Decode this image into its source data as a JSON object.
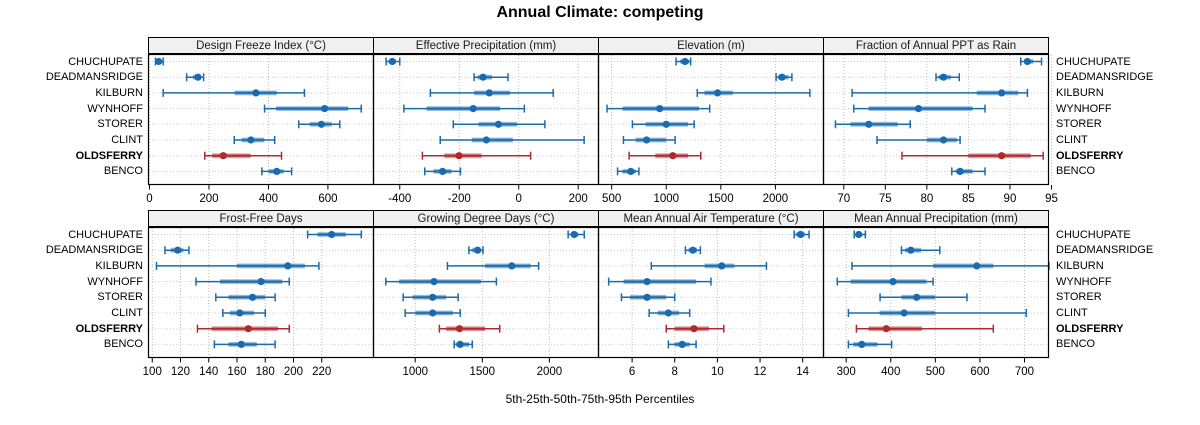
{
  "title": "Annual Climate: competing",
  "caption": "5th-25th-50th-75th-95th Percentiles",
  "percentile_labels": [
    "5th",
    "25th",
    "50th",
    "75th",
    "95th"
  ],
  "stations": [
    "CHUCHUPATE",
    "DEADMANSRIDGE",
    "KILBURN",
    "WYNHOFF",
    "STORER",
    "CLINT",
    "OLDSFERRY",
    "BENCO"
  ],
  "highlight_station": "OLDSFERRY",
  "colors": {
    "series_blue": "#1a6aad",
    "series_red": "#b3282d",
    "strip_bg": "#f0f0f0",
    "grid": "#bdbdbd",
    "border": "#000000"
  },
  "chart_data": [
    {
      "type": "dotplot-intervals",
      "title": "Design Freeze Index (°C)",
      "row": 0,
      "col": 0,
      "xlim": [
        -5,
        755
      ],
      "ticks": [
        0,
        200,
        400,
        600
      ],
      "percentiles": [
        "5th",
        "25th",
        "50th",
        "75th",
        "95th"
      ],
      "series": {
        "CHUCHUPATE": [
          20,
          26,
          31,
          38,
          46
        ],
        "DEADMANSRIDGE": [
          125,
          146,
          163,
          173,
          182
        ],
        "KILBURN": [
          46,
          286,
          358,
          428,
          521
        ],
        "WYNHOFF": [
          387,
          426,
          589,
          668,
          712
        ],
        "STORER": [
          502,
          539,
          578,
          613,
          640
        ],
        "CLINT": [
          285,
          310,
          341,
          386,
          421
        ],
        "OLDSFERRY": [
          186,
          211,
          248,
          340,
          444
        ],
        "BENCO": [
          378,
          401,
          428,
          451,
          478
        ]
      }
    },
    {
      "type": "dotplot-intervals",
      "title": "Effective Precipitation (mm)",
      "row": 0,
      "col": 1,
      "xlim": [
        -490,
        270
      ],
      "ticks": [
        -400,
        -200,
        0,
        200
      ],
      "percentiles": [
        "5th",
        "25th",
        "50th",
        "75th",
        "95th"
      ],
      "series": {
        "CHUCHUPATE": [
          -446,
          -437,
          -425,
          -413,
          -400
        ],
        "DEADMANSRIDGE": [
          -150,
          -138,
          -120,
          -90,
          -36
        ],
        "KILBURN": [
          -297,
          -150,
          -99,
          -30,
          116
        ],
        "WYNHOFF": [
          -386,
          -310,
          -153,
          -63,
          19
        ],
        "STORER": [
          -220,
          -135,
          -68,
          -5,
          88
        ],
        "CLINT": [
          -264,
          -158,
          -109,
          -20,
          220
        ],
        "OLDSFERRY": [
          -324,
          -250,
          -201,
          -125,
          40
        ],
        "BENCO": [
          -316,
          -286,
          -256,
          -226,
          -196
        ]
      }
    },
    {
      "type": "dotplot-intervals",
      "title": "Elevation (m)",
      "row": 0,
      "col": 2,
      "xlim": [
        375,
        2445
      ],
      "ticks": [
        500,
        1000,
        1500,
        2000
      ],
      "percentiles": [
        "5th",
        "25th",
        "50th",
        "75th",
        "95th"
      ],
      "series": {
        "CHUCHUPATE": [
          1090,
          1128,
          1172,
          1210,
          1224
        ],
        "DEADMANSRIDGE": [
          2006,
          2025,
          2060,
          2119,
          2151
        ],
        "KILBURN": [
          1284,
          1350,
          1470,
          1610,
          2316
        ],
        "WYNHOFF": [
          458,
          600,
          940,
          1300,
          1398
        ],
        "STORER": [
          690,
          810,
          1000,
          1200,
          1256
        ],
        "CLINT": [
          608,
          720,
          820,
          1000,
          1081
        ],
        "OLDSFERRY": [
          660,
          900,
          1060,
          1200,
          1316
        ],
        "BENCO": [
          554,
          600,
          675,
          720,
          750
        ]
      }
    },
    {
      "type": "dotplot-intervals",
      "title": "Fraction of Annual PPT as Rain",
      "row": 0,
      "col": 3,
      "xlim": [
        67.5,
        94.7
      ],
      "ticks": [
        70,
        75,
        80,
        85,
        90,
        95
      ],
      "percentiles": [
        "5th",
        "25th",
        "50th",
        "75th",
        "95th"
      ],
      "series": {
        "CHUCHUPATE": [
          91.3,
          91.7,
          92.1,
          92.8,
          93.8
        ],
        "DEADMANSRIDGE": [
          81.1,
          81.4,
          82.0,
          82.9,
          83.9
        ],
        "KILBURN": [
          71.0,
          86.0,
          89.0,
          91.0,
          92.1
        ],
        "WYNHOFF": [
          71.2,
          73.0,
          79.0,
          85.5,
          87.0
        ],
        "STORER": [
          69.0,
          70.8,
          73.0,
          76.5,
          78.0
        ],
        "CLINT": [
          74.0,
          80.0,
          82.0,
          83.6,
          84.0
        ],
        "OLDSFERRY": [
          77.0,
          85.0,
          89.0,
          92.5,
          94.0
        ],
        "BENCO": [
          83.0,
          83.5,
          84.0,
          85.5,
          87.0
        ]
      }
    },
    {
      "type": "dotplot-intervals",
      "title": "Frost-Free Days",
      "row": 1,
      "col": 0,
      "xlim": [
        97,
        257
      ],
      "ticks": [
        100,
        120,
        140,
        160,
        180,
        200,
        220
      ],
      "percentiles": [
        "5th",
        "25th",
        "50th",
        "75th",
        "95th"
      ],
      "series": {
        "CHUCHUPATE": [
          210,
          217,
          227,
          237,
          248
        ],
        "DEADMANSRIDGE": [
          109,
          113,
          118,
          122,
          126
        ],
        "KILBURN": [
          103,
          160,
          196,
          208,
          218
        ],
        "WYNHOFF": [
          131,
          148,
          177,
          192,
          197
        ],
        "STORER": [
          145,
          154,
          171,
          180,
          187
        ],
        "CLINT": [
          150,
          155,
          162,
          172,
          180
        ],
        "OLDSFERRY": [
          132,
          142,
          168,
          189,
          197
        ],
        "BENCO": [
          144,
          154,
          163,
          174,
          187
        ]
      }
    },
    {
      "type": "dotplot-intervals",
      "title": "Growing Degree Days (°C)",
      "row": 1,
      "col": 1,
      "xlim": [
        685,
        2370
      ],
      "ticks": [
        1000,
        1500,
        2000
      ],
      "percentiles": [
        "5th",
        "25th",
        "50th",
        "75th",
        "95th"
      ],
      "series": {
        "CHUCHUPATE": [
          2140,
          2160,
          2185,
          2215,
          2260
        ],
        "DEADMANSRIDGE": [
          1400,
          1425,
          1465,
          1485,
          1505
        ],
        "KILBURN": [
          1240,
          1520,
          1720,
          1860,
          1920
        ],
        "WYNHOFF": [
          780,
          880,
          1140,
          1490,
          1605
        ],
        "STORER": [
          910,
          980,
          1130,
          1230,
          1320
        ],
        "CLINT": [
          925,
          1000,
          1130,
          1280,
          1335
        ],
        "OLDSFERRY": [
          1180,
          1230,
          1330,
          1520,
          1630
        ],
        "BENCO": [
          1290,
          1305,
          1335,
          1400,
          1425
        ]
      }
    },
    {
      "type": "dotplot-intervals",
      "title": "Mean Annual Air Temperature (°C)",
      "row": 1,
      "col": 2,
      "xlim": [
        4.4,
        15.0
      ],
      "ticks": [
        6,
        8,
        10,
        12,
        14
      ],
      "percentiles": [
        "5th",
        "25th",
        "50th",
        "75th",
        "95th"
      ],
      "series": {
        "CHUCHUPATE": [
          13.6,
          13.7,
          13.9,
          14.1,
          14.3
        ],
        "DEADMANSRIDGE": [
          8.5,
          8.65,
          8.85,
          9.05,
          9.2
        ],
        "KILBURN": [
          6.9,
          9.4,
          10.2,
          10.8,
          12.3
        ],
        "WYNHOFF": [
          4.9,
          5.6,
          6.7,
          9.0,
          9.7
        ],
        "STORER": [
          5.5,
          5.9,
          6.7,
          7.6,
          8.0
        ],
        "CLINT": [
          6.8,
          7.2,
          7.7,
          8.2,
          8.7
        ],
        "OLDSFERRY": [
          7.6,
          8.0,
          8.9,
          9.6,
          10.3
        ],
        "BENCO": [
          7.7,
          8.0,
          8.35,
          8.7,
          9.0
        ]
      }
    },
    {
      "type": "dotplot-intervals",
      "title": "Mean Annual Precipitation (mm)",
      "row": 1,
      "col": 3,
      "xlim": [
        248,
        755
      ],
      "ticks": [
        300,
        400,
        500,
        600,
        700
      ],
      "percentiles": [
        "5th",
        "25th",
        "50th",
        "75th",
        "95th"
      ],
      "series": {
        "CHUCHUPATE": [
          318,
          322,
          328,
          336,
          343
        ],
        "DEADMANSRIDGE": [
          424,
          432,
          445,
          468,
          510
        ],
        "KILBURN": [
          313,
          495,
          593,
          630,
          755
        ],
        "WYNHOFF": [
          280,
          310,
          405,
          480,
          495
        ],
        "STORER": [
          376,
          424,
          458,
          500,
          571
        ],
        "CLINT": [
          305,
          375,
          430,
          500,
          704
        ],
        "OLDSFERRY": [
          323,
          350,
          390,
          470,
          630
        ],
        "BENCO": [
          305,
          316,
          335,
          370,
          402
        ]
      }
    }
  ]
}
